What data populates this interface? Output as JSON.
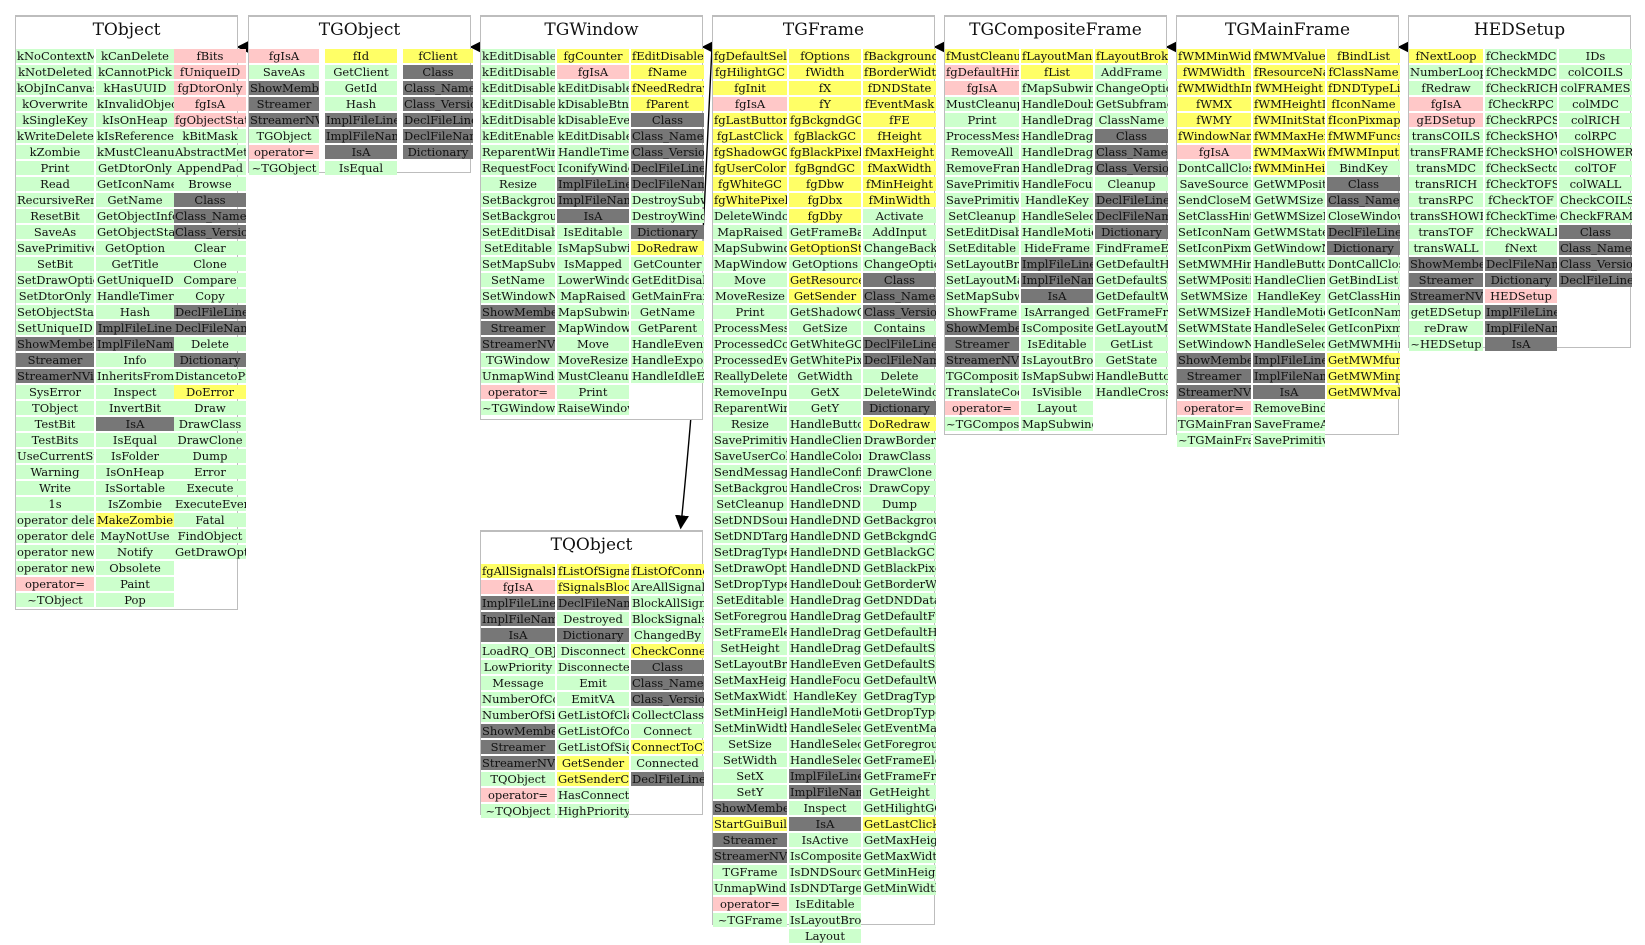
{
  "classes": [
    {
      "name": "TObject",
      "columns": [
        [
          "kNoContextMenu",
          "kNotDeleted",
          "kObjInCanvas",
          "kOverwrite",
          "kSingleKey",
          "kWriteDelete",
          "kZombie",
          "Print",
          "Read",
          "RecursiveRemove",
          "ResetBit",
          "SaveAs",
          "SavePrimitive",
          "SetBit",
          "SetDrawOption",
          "SetDtorOnly",
          "SetObjectStat",
          "SetUniqueID",
          "ShowMembers",
          "Streamer",
          "StreamerNVirtual",
          "SysError",
          "TObject",
          "TestBit",
          "TestBits",
          "UseCurrentStyle",
          "Warning",
          "Write",
          "1s",
          "operator delete",
          "operator delete[]",
          "operator new",
          "operator new[]",
          "operator=",
          "~TObject"
        ],
        [
          "kCanDelete",
          "kCannotPick",
          "kHasUUID",
          "kInvalidObject",
          "kIsOnHeap",
          "kIsReferenced",
          "kMustCleanup",
          "GetDtorOnly",
          "GetIconName",
          "GetName",
          "GetObjectInfo",
          "GetObjectStat",
          "GetOption",
          "GetTitle",
          "GetUniqueID",
          "HandleTimer",
          "Hash",
          "ImplFileLine",
          "ImplFileName",
          "Info",
          "InheritsFrom",
          "Inspect",
          "InvertBit",
          "IsA",
          "IsEqual",
          "IsFolder",
          "IsOnHeap",
          "IsSortable",
          "IsZombie",
          "MakeZombie",
          "MayNotUse",
          "Notify",
          "Obsolete",
          "Paint",
          "Pop"
        ],
        [
          "fBits",
          "fUniqueID",
          "fgDtorOnly",
          "fgIsA",
          "fgObjectStat",
          "kBitMask",
          "AbstractMethod",
          "AppendPad",
          "Browse",
          "Class",
          "Class_Name",
          "Class_Version",
          "Clear",
          "Clone",
          "Compare",
          "Copy",
          "DeclFileLine",
          "DeclFileName",
          "Delete",
          "Dictionary",
          "DistancetoPrimitive",
          "DoError",
          "Draw",
          "DrawClass",
          "DrawClone",
          "Dump",
          "Error",
          "Execute",
          "ExecuteEvent",
          "Fatal",
          "FindObject",
          "GetDrawOption"
        ]
      ]
    },
    {
      "name": "TGObject",
      "columns": [
        [
          "fgIsA",
          "SaveAs",
          "ShowMembers",
          "Streamer",
          "StreamerNVirtual",
          "TGObject",
          "operator=",
          "~TGObject"
        ],
        [
          "fId",
          "GetClient",
          "GetId",
          "Hash",
          "ImplFileLine",
          "ImplFileName",
          "IsA",
          "IsEqual"
        ],
        [
          "fClient",
          "Class",
          "Class_Name",
          "Class_Version",
          "DeclFileLine",
          "DeclFileName",
          "Dictionary"
        ]
      ]
    },
    {
      "name": "TGWindow",
      "columns": [
        [
          "kEditDisableHeight",
          "kEditDisableKeyEnable",
          "kEditDisableLayout",
          "kEditDisableResize",
          "kEditDisableWidth",
          "kEditEnable",
          "ReparentWindow",
          "RequestFocus",
          "Resize",
          "SetBackgroundColor",
          "SetBackgroundPixmap",
          "SetEditDisabled",
          "SetEditable",
          "SetMapSubwindows",
          "SetName",
          "SetWindowName",
          "ShowMembers",
          "Streamer",
          "StreamerNVirtual",
          "TGWindow",
          "UnmapWindow",
          "operator=",
          "~TGWindow"
        ],
        [
          "fgCounter",
          "fgIsA",
          "kEditDisable",
          "kDisableBtnEnable",
          "kDisableEvents",
          "kEditDisableGrab",
          "HandleTimer",
          "IconifyWindow",
          "ImplFileLine",
          "ImplFileName",
          "IsA",
          "IsEditable",
          "IsMapSubwindows",
          "IsMapped",
          "LowerWindow",
          "MapRaised",
          "MapSubwindows",
          "MapWindow",
          "Move",
          "MoveResize",
          "MustCleanup",
          "Print",
          "RaiseWindow"
        ],
        [
          "fEditDisabled",
          "fName",
          "fNeedRedraw",
          "fParent",
          "Class",
          "Class_Name",
          "Class_Version",
          "DeclFileLine",
          "DeclFileName",
          "DestroySubwindows",
          "DestroyWindow",
          "Dictionary",
          "DoRedraw",
          "GetCounter",
          "GetEditDisabled",
          "GetMainFrame",
          "GetName",
          "GetParent",
          "HandleEvent",
          "HandleExpose",
          "HandleIdleEvent"
        ]
      ]
    },
    {
      "name": "TGFrame",
      "columns": [
        [
          "fgDefaultSelectedBackground",
          "fgHilightGC",
          "fgInit",
          "fgIsA",
          "fgLastButton",
          "fgLastClick",
          "fgShadowGC",
          "fgUserColor",
          "fgWhiteGC",
          "fgWhitePixel",
          "DeleteWindowCalled",
          "MapRaised",
          "MapSubwindows",
          "MapWindow",
          "Move",
          "MoveResize",
          "Print",
          "ProcessMessage",
          "ProcessedConfigure",
          "ProcessedEvent",
          "ReallyDelete",
          "RemoveInput",
          "ReparentWindow",
          "Resize",
          "SavePrimitive",
          "SaveUserColor",
          "SendMessage",
          "SetBackgroundColor",
          "SetCleanup",
          "SetDNDSource",
          "SetDNDTarget",
          "SetDragType",
          "SetDrawOption",
          "SetDropType",
          "SetEditable",
          "SetForegroundColor",
          "SetFrameElement",
          "SetHeight",
          "SetLayoutBroken",
          "SetMaxHeight",
          "SetMaxWidth",
          "SetMinHeight",
          "SetMinWidth",
          "SetSize",
          "SetWidth",
          "SetX",
          "SetY",
          "ShowMembers",
          "StartGuiBuilding",
          "Streamer",
          "StreamerNVirtual",
          "TGFrame",
          "UnmapWindow",
          "operator=",
          "~TGFrame"
        ],
        [
          "fOptions",
          "fWidth",
          "fX",
          "fY",
          "fgBckgndGC",
          "fgBlackGC",
          "fgBlackPixel",
          "fgBgndGC",
          "fgDbw",
          "fgDbx",
          "fgDby",
          "GetFrameBackground",
          "GetOptionString",
          "GetOptions",
          "GetResourcePool",
          "GetSender",
          "GetShadowGC",
          "GetSize",
          "GetWhiteGC",
          "GetWhitePixel",
          "GetWidth",
          "GetX",
          "GetY",
          "HandleButton",
          "HandleClientMessage",
          "HandleColormapChange",
          "HandleConfigureNotify",
          "HandleCrossing",
          "HandleDNDDrop",
          "HandleDNDEnter",
          "HandleDNDFinished",
          "HandleDNDLeave",
          "HandleDNDPosition",
          "HandleDoubleClick",
          "HandleDragDrop",
          "HandleDragEnter",
          "HandleDragLeave",
          "HandleDragMotion",
          "HandleEvent",
          "HandleFocusChange",
          "HandleKey",
          "HandleMotion",
          "HandleSelection",
          "HandleSelectionClear",
          "HandleSelectionRequest",
          "ImplFileLine",
          "ImplFileName",
          "Inspect",
          "IsA",
          "IsActive",
          "IsComposite",
          "IsDNDSource",
          "IsDNDTarget",
          "IsEditable",
          "IsLayoutBroken",
          "Layout"
        ],
        [
          "fBackground",
          "fBorderWidth",
          "fDNDState",
          "fEventMask",
          "fFE",
          "fHeight",
          "fMaxHeight",
          "fMaxWidth",
          "fMinHeight",
          "fMinWidth",
          "Activate",
          "AddInput",
          "ChangeBackground",
          "ChangeOptions",
          "Class",
          "Class_Name",
          "Class_Version",
          "Contains",
          "DeclFileLine",
          "DeclFileName",
          "Delete",
          "DeleteWindow",
          "Dictionary",
          "DoRedraw",
          "DrawBorder",
          "DrawClass",
          "DrawClone",
          "DrawCopy",
          "Dump",
          "GetBackground",
          "GetBckgndGC",
          "GetBlackGC",
          "GetBlackPixel",
          "GetBorderWidth",
          "GetDNDData",
          "GetDefaultFrameBackground",
          "GetDefaultHeight",
          "GetDefaultSelectedBackground",
          "GetDefaultSize",
          "GetDefaultWidth",
          "GetDragType",
          "GetDropType",
          "GetEventMask",
          "GetForeground",
          "GetFrameElement",
          "GetFrameFromPoint",
          "GetHeight",
          "GetHilightGC",
          "GetLastClick",
          "GetMaxHeight",
          "GetMaxWidth",
          "GetMinHeight",
          "GetMinWidth"
        ]
      ]
    },
    {
      "name": "TGCompositeFrame",
      "columns": [
        [
          "fMustCleanup",
          "fgDefaultHints",
          "fgIsA",
          "MustCleanup",
          "Print",
          "ProcessMessage",
          "RemoveAll",
          "RemoveFrame",
          "SavePrimitive",
          "SavePrimitiveSubframes",
          "SetCleanup",
          "SetEditDisabled",
          "SetEditable",
          "SetLayoutBroken",
          "SetLayoutManager",
          "SetMapSubwindows",
          "ShowFrame",
          "ShowMembers",
          "Streamer",
          "StreamerNVirtual",
          "TGCompositeFrame",
          "TranslateCoordinates",
          "operator=",
          "~TGCompositeFrame"
        ],
        [
          "fLayoutManager",
          "fList",
          "fMapSubwindows",
          "HandleDoubleClick",
          "HandleDragDrop",
          "HandleDragEnter",
          "HandleDragLeave",
          "HandleDragMotion",
          "HandleFocusChange",
          "HandleKey",
          "HandleSelection",
          "HandleMotion",
          "HideFrame",
          "ImplFileLine",
          "ImplFileName",
          "IsA",
          "IsArranged",
          "IsComposite",
          "IsEditable",
          "IsLayoutBroken",
          "IsMapSubwindows",
          "IsVisible",
          "Layout",
          "MapSubwindows"
        ],
        [
          "fLayoutBroken",
          "AddFrame",
          "ChangeOptions",
          "GetSubframesBackground",
          "ClassName",
          "Class",
          "Class_Name",
          "Class_Version",
          "Cleanup",
          "DeclFileLine",
          "DeclFileName",
          "Dictionary",
          "FindFrameElement",
          "GetDefaultHeight",
          "GetDefaultSize",
          "GetDefaultWidth",
          "GetFrameFromPoint",
          "GetLayoutManager",
          "GetList",
          "GetState",
          "HandleButton",
          "HandleCrossing"
        ]
      ]
    },
    {
      "name": "TGMainFrame",
      "columns": [
        [
          "fWMMinWidth",
          "fWMWidth",
          "fWMWidthInc",
          "fWMX",
          "fWMY",
          "fWindowName",
          "fgIsA",
          "DontCallClose",
          "SaveSource",
          "SendCloseMessage",
          "SetClassHints",
          "SetIconName",
          "SetIconPixmap",
          "SetMWMHints",
          "SetWMPosition",
          "SetWMSize",
          "SetWMSizeHints",
          "SetWMState",
          "SetWindowName",
          "ShowMembers",
          "Streamer",
          "StreamerNVirtual",
          "operator=",
          "TGMainFrame",
          "~TGMainFrame"
        ],
        [
          "fMWMValue",
          "fResourceName",
          "fWMHeight",
          "fWMHeightInc",
          "fWMInitState",
          "fWMMaxHeight",
          "fWMMaxWidth",
          "fWMMinHeight",
          "GetWMPosition",
          "GetWMSize",
          "GetWMSizeHints",
          "GetWMState",
          "GetWindowName",
          "HandleButton",
          "HandleClientMessage",
          "HandleKey",
          "HandleMotion",
          "HandleSelection",
          "HandleSelectionRequest",
          "ImplFileLine",
          "ImplFileName",
          "IsA",
          "RemoveBind",
          "SaveFrameAsCodeOrImage",
          "SavePrimitive"
        ],
        [
          "fBindList",
          "fClassName",
          "fDNDTypeList",
          "fIconName",
          "fIconPixmap",
          "fMWMFuncs",
          "fMWMInput",
          "BindKey",
          "Class",
          "Class_Name",
          "CloseWindow",
          "DeclFileLine",
          "Dictionary",
          "DontCallClose",
          "GetBindList",
          "GetClassHints",
          "GetIconName",
          "GetIconPixmap",
          "GetMWMHints",
          "GetMWMfuncString",
          "GetMWMinpString",
          "GetMWMvalueString"
        ]
      ]
    },
    {
      "name": "HEDSetup",
      "columns": [
        [
          "fNextLoop",
          "NumberLoopToDo",
          "fRedraw",
          "fgIsA",
          "gEDSetup",
          "transCOILS",
          "transFRAMES",
          "transMDC",
          "transRICH",
          "transRPC",
          "transSHOWER",
          "transTOF",
          "transWALL",
          "ShowMembers",
          "Streamer",
          "StreamerNVirtual",
          "getEDSetup",
          "reDraw",
          "~HEDSetup"
        ],
        [
          "fCheckMDC",
          "fCheckMDCMod",
          "fCheckRICH",
          "fCheckRPC",
          "fCheckRPCSec",
          "fCheckSHOWER",
          "fCheckSHOWERSec",
          "fCheckSector",
          "fCheckTOFSec",
          "fCheckTOF",
          "fCheckTimed",
          "fCheckWALL",
          "fNext",
          "DeclFileName",
          "Dictionary",
          "HEDSetup",
          "ImplFileLine",
          "ImplFileName",
          "IsA"
        ],
        [
          "IDs",
          "colCOILS",
          "colFRAMES",
          "colMDC",
          "colRICH",
          "colRPC",
          "colSHOWER",
          "colTOF",
          "colWALL",
          "CheckCOILS",
          "CheckFRAMES",
          "Class",
          "Class_Name",
          "Class_Version",
          "DeclFileLine"
        ]
      ]
    },
    {
      "name": "TQObject",
      "columns": [
        [
          "fgAllSignalsBlocked",
          "fgIsA",
          "ImplFileLine",
          "ImplFileName",
          "IsA",
          "LoadRQ_OBJECT",
          "LowPriority",
          "Message",
          "NumberOfConnections",
          "NumberOfSignals",
          "ShowMembers",
          "Streamer",
          "StreamerNVirtual",
          "TQObject",
          "operator=",
          "~TQObject"
        ],
        [
          "fListOfSignals",
          "fSignalsBlocked",
          "DeclFileName",
          "Destroyed",
          "Dictionary",
          "Disconnect",
          "Disconnected",
          "Emit",
          "EmitVA",
          "GetListOfClassSignals",
          "GetListOfConnections",
          "GetListOfSignals",
          "GetSender",
          "GetSenderClassName",
          "HasConnection",
          "HighPriority"
        ],
        [
          "fListOfConnections",
          "AreAllSignalsBlocked",
          "BlockAllSignals",
          "BlockSignals",
          "ChangedBy",
          "CheckConnectArgs",
          "Class",
          "Class_Name",
          "Class_Version",
          "CollectClassSignalLists",
          "Connect",
          "ConnectToClass",
          "Connected",
          "DeclFileLine"
        ]
      ]
    }
  ],
  "colors": {
    "methods": "#ccffcc",
    "members": "#ffff66",
    "static": "#ffc8c8",
    "inherited": "#777777",
    "border": "#bdbdbd",
    "edge": "#000000"
  },
  "edges": [
    {
      "from": "TGObject",
      "to": "TObject"
    },
    {
      "from": "TGWindow",
      "to": "TGObject"
    },
    {
      "from": "TGFrame",
      "to": "TGWindow"
    },
    {
      "from": "TGFrame",
      "to": "TQObject"
    },
    {
      "from": "TGCompositeFrame",
      "to": "TGFrame"
    },
    {
      "from": "TGMainFrame",
      "to": "TGCompositeFrame"
    },
    {
      "from": "HEDSetup",
      "to": "TGMainFrame"
    }
  ]
}
